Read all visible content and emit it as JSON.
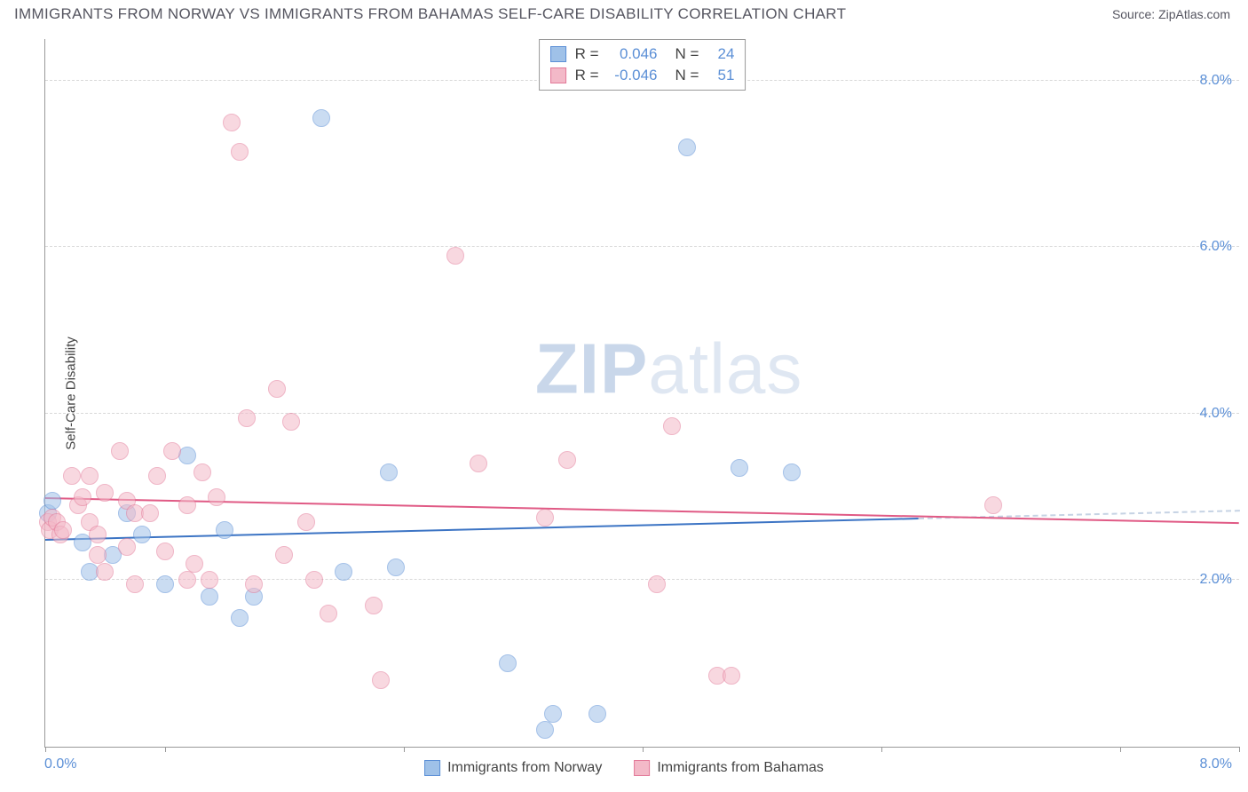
{
  "header": {
    "title": "IMMIGRANTS FROM NORWAY VS IMMIGRANTS FROM BAHAMAS SELF-CARE DISABILITY CORRELATION CHART",
    "source_prefix": "Source: ",
    "source_name": "ZipAtlas.com"
  },
  "watermark": {
    "bold": "ZIP",
    "rest": "atlas"
  },
  "chart": {
    "type": "scatter",
    "ylabel": "Self-Care Disability",
    "background_color": "#ffffff",
    "grid_color": "#d8d8d8",
    "axis_color": "#999999",
    "tick_label_color": "#5b8fd6",
    "xlim": [
      0.0,
      8.0
    ],
    "ylim": [
      0.0,
      8.5
    ],
    "xticks": [
      0.0,
      0.8,
      2.4,
      4.0,
      5.6,
      7.2,
      8.0
    ],
    "xmin_label": "0.0%",
    "xmax_label": "8.0%",
    "yticks": [
      {
        "v": 2.0,
        "label": "2.0%"
      },
      {
        "v": 4.0,
        "label": "4.0%"
      },
      {
        "v": 6.0,
        "label": "6.0%"
      },
      {
        "v": 8.0,
        "label": "8.0%"
      }
    ],
    "marker_radius": 10,
    "marker_opacity": 0.55,
    "series": [
      {
        "id": "norway",
        "name": "Immigrants from Norway",
        "fill": "#9fc1e8",
        "stroke": "#5b8fd6",
        "line_color": "#3c74c4",
        "R_label": "R =",
        "R": "0.046",
        "N_label": "N =",
        "N": "24",
        "trend": {
          "y_at_xmin": 2.5,
          "y_at_xmax": 2.85,
          "solid_until_x": 5.85
        },
        "points": [
          [
            0.02,
            2.8
          ],
          [
            0.05,
            2.95
          ],
          [
            0.25,
            2.45
          ],
          [
            0.3,
            2.1
          ],
          [
            0.45,
            2.3
          ],
          [
            0.55,
            2.8
          ],
          [
            0.65,
            2.55
          ],
          [
            0.8,
            1.95
          ],
          [
            0.95,
            3.5
          ],
          [
            1.1,
            1.8
          ],
          [
            1.2,
            2.6
          ],
          [
            1.3,
            1.55
          ],
          [
            1.4,
            1.8
          ],
          [
            1.85,
            7.55
          ],
          [
            2.0,
            2.1
          ],
          [
            2.3,
            3.3
          ],
          [
            2.35,
            2.15
          ],
          [
            3.1,
            1.0
          ],
          [
            3.35,
            0.2
          ],
          [
            3.4,
            0.4
          ],
          [
            3.7,
            0.4
          ],
          [
            4.3,
            7.2
          ],
          [
            4.65,
            3.35
          ],
          [
            5.0,
            3.3
          ]
        ]
      },
      {
        "id": "bahamas",
        "name": "Immigrants from Bahamas",
        "fill": "#f3b9c8",
        "stroke": "#e37a99",
        "line_color": "#e05a85",
        "R_label": "R =",
        "R": "-0.046",
        "N_label": "N =",
        "N": "51",
        "trend": {
          "y_at_xmin": 3.0,
          "y_at_xmax": 2.7,
          "solid_until_x": 8.0
        },
        "points": [
          [
            0.02,
            2.7
          ],
          [
            0.03,
            2.6
          ],
          [
            0.05,
            2.75
          ],
          [
            0.08,
            2.7
          ],
          [
            0.1,
            2.55
          ],
          [
            0.12,
            2.6
          ],
          [
            0.18,
            3.25
          ],
          [
            0.22,
            2.9
          ],
          [
            0.25,
            3.0
          ],
          [
            0.3,
            2.7
          ],
          [
            0.3,
            3.25
          ],
          [
            0.35,
            2.55
          ],
          [
            0.35,
            2.3
          ],
          [
            0.4,
            3.05
          ],
          [
            0.4,
            2.1
          ],
          [
            0.5,
            3.55
          ],
          [
            0.55,
            2.95
          ],
          [
            0.55,
            2.4
          ],
          [
            0.6,
            1.95
          ],
          [
            0.6,
            2.8
          ],
          [
            0.7,
            2.8
          ],
          [
            0.75,
            3.25
          ],
          [
            0.8,
            2.35
          ],
          [
            0.85,
            3.55
          ],
          [
            0.95,
            2.0
          ],
          [
            0.95,
            2.9
          ],
          [
            1.0,
            2.2
          ],
          [
            1.05,
            3.3
          ],
          [
            1.1,
            2.0
          ],
          [
            1.15,
            3.0
          ],
          [
            1.25,
            7.5
          ],
          [
            1.3,
            7.15
          ],
          [
            1.35,
            3.95
          ],
          [
            1.4,
            1.95
          ],
          [
            1.55,
            4.3
          ],
          [
            1.6,
            2.3
          ],
          [
            1.65,
            3.9
          ],
          [
            1.75,
            2.7
          ],
          [
            1.8,
            2.0
          ],
          [
            1.9,
            1.6
          ],
          [
            2.2,
            1.7
          ],
          [
            2.25,
            0.8
          ],
          [
            2.75,
            5.9
          ],
          [
            2.9,
            3.4
          ],
          [
            3.35,
            2.75
          ],
          [
            3.5,
            3.45
          ],
          [
            4.1,
            1.95
          ],
          [
            4.2,
            3.85
          ],
          [
            4.5,
            0.85
          ],
          [
            4.6,
            0.85
          ],
          [
            6.35,
            2.9
          ]
        ]
      }
    ]
  }
}
